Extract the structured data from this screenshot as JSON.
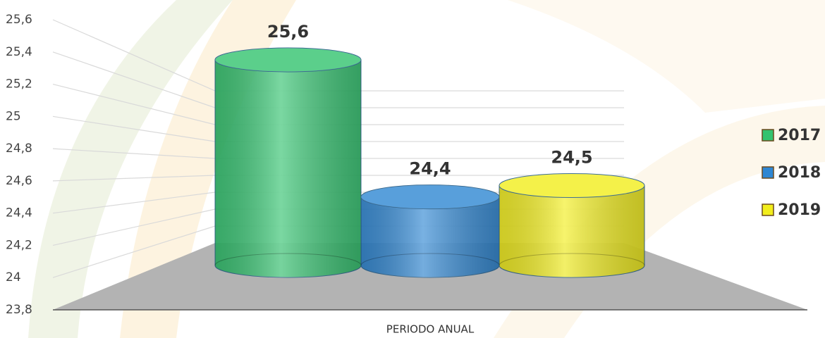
{
  "chart_data": {
    "type": "bar3d",
    "categories": [
      null
    ],
    "x_label": "PERIODO ANUAL",
    "series": [
      {
        "name": "2017",
        "color": "#33c36f",
        "values": [
          25.6
        ],
        "value_labels": [
          "25,6"
        ]
      },
      {
        "name": "2018",
        "color": "#2f87d3",
        "values": [
          24.4
        ],
        "value_labels": [
          "24,4"
        ]
      },
      {
        "name": "2019",
        "color": "#f2ee1c",
        "values": [
          24.5
        ],
        "value_labels": [
          "24,5"
        ]
      }
    ],
    "ylim": [
      23.8,
      25.6
    ],
    "yticks": [
      {
        "value": 23.8,
        "label": "23,8"
      },
      24,
      {
        "value": 24.2,
        "label": "24,2"
      },
      {
        "value": 24.4,
        "label": "24,4"
      },
      {
        "value": 24.6,
        "label": "24,6"
      },
      {
        "value": 24.8,
        "label": "24,8"
      },
      25,
      {
        "value": 25.2,
        "label": "25,2"
      },
      {
        "value": 25.4,
        "label": "25,4"
      },
      {
        "value": 25.6,
        "label": "25,6"
      }
    ],
    "grid": true,
    "legend": "right"
  }
}
